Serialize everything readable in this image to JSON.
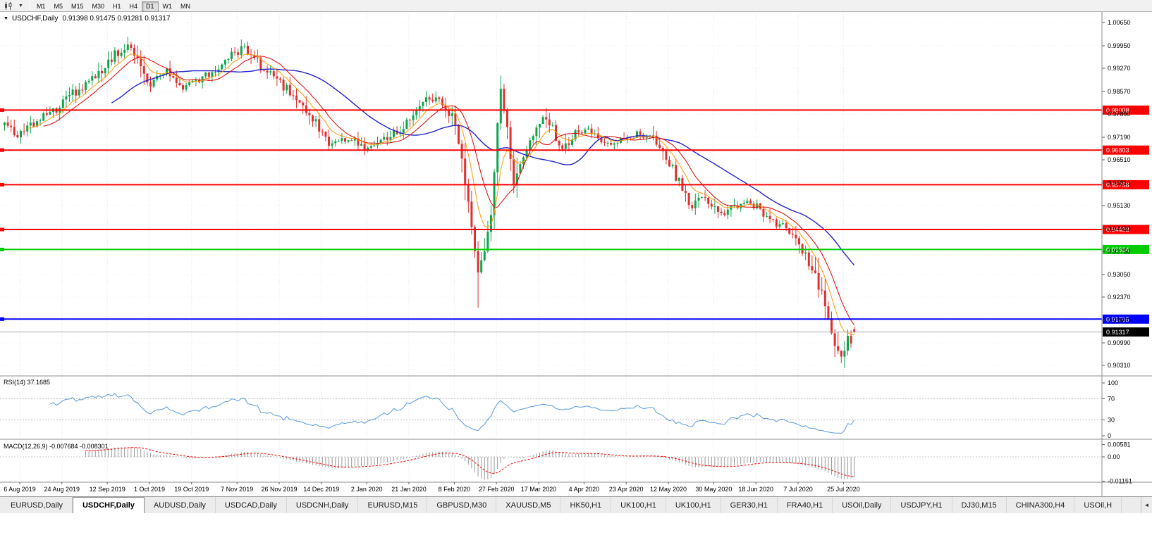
{
  "toolbar": {
    "caret": "▼",
    "timeframes": [
      {
        "label": "M1",
        "active": false
      },
      {
        "label": "M5",
        "active": false
      },
      {
        "label": "M15",
        "active": false
      },
      {
        "label": "M30",
        "active": false
      },
      {
        "label": "H1",
        "active": false
      },
      {
        "label": "H4",
        "active": false
      },
      {
        "label": "D1",
        "active": true
      },
      {
        "label": "W1",
        "active": false
      },
      {
        "label": "MN",
        "active": false
      }
    ]
  },
  "chart": {
    "caret": "▼",
    "symbol": "USDCHF,Daily",
    "ohlc_line": "0.91398 0.91475 0.91281 0.91317",
    "colors": {
      "up": "#0FA54C",
      "down": "#DF3030",
      "ma_fast": "#FF9900",
      "ma_mid": "#E00000",
      "ma_slow": "#2323CC",
      "grid": "#E4E4E4",
      "hgrid": "#F0F0F0",
      "splitter": "#8e8e8e",
      "axis_text": "#000000"
    },
    "price_axis_labels": [
      "1.00650",
      "0.99950",
      "0.99270",
      "0.98570",
      "0.97890",
      "0.97190",
      "0.96510",
      "0.95810",
      "0.95130",
      "0.94430",
      "0.93750",
      "0.93050",
      "0.92370",
      "0.91670",
      "0.90990",
      "0.90310"
    ],
    "hlines": [
      {
        "price": 0.98008,
        "label": "0.98008",
        "color": "#FF0000"
      },
      {
        "price": 0.96803,
        "label": "0.96803",
        "color": "#FF0000"
      },
      {
        "price": 0.95758,
        "label": "0.95758",
        "color": "#FF0000"
      },
      {
        "price": 0.94408,
        "label": "0.94408",
        "color": "#FF0000"
      },
      {
        "price": 0.93804,
        "label": "0.93804",
        "color": "#00CC00"
      },
      {
        "price": 0.91705,
        "label": "0.91705",
        "color": "#0000FF"
      }
    ],
    "current_price": {
      "value": 0.91317,
      "label": "0.91317",
      "tag_bg": "#000000",
      "line_color": "#aaaaaa"
    }
  },
  "rsi_panel": {
    "label": "RSI(14) 37.1685",
    "value": 37.1685,
    "axis_labels": [
      "100",
      "70",
      "30",
      "0"
    ],
    "axis_values": [
      100,
      70,
      30,
      0
    ],
    "levels": [
      70,
      30
    ],
    "line_color": "#5599DD"
  },
  "macd_panel": {
    "label": "MACD(12,26,9) -0.007684 -0.008301",
    "macd_value": -0.007684,
    "signal_value": -0.008301,
    "axis_labels": [
      "0.00581",
      "0.00",
      "-0.01151"
    ],
    "axis_values": [
      0.00581,
      0,
      -0.01151
    ],
    "hist_color": "#999999",
    "signal_color": "#FF0000"
  },
  "date_axis": {
    "labels": [
      "6 Aug 2019",
      "24 Aug 2019",
      "12 Sep 2019",
      "1 Oct 2019",
      "19 Oct 2019",
      "7 Nov 2019",
      "26 Nov 2019",
      "14 Dec 2019",
      "2 Jan 2020",
      "21 Jan 2020",
      "8 Feb 2020",
      "27 Feb 2020",
      "17 Mar 2020",
      "4 Apr 2020",
      "23 Apr 2020",
      "12 May 2020",
      "30 May 2020",
      "18 Jun 2020",
      "7 Jul 2020",
      "25 Jul 2020"
    ]
  },
  "tabs": {
    "scroll_left_arrow": "◄",
    "items": [
      {
        "label": "EURUSD,Daily",
        "active": false
      },
      {
        "label": "USDCHF,Daily",
        "active": true
      },
      {
        "label": "AUDUSD,Daily",
        "active": false
      },
      {
        "label": "USDCAD,Daily",
        "active": false
      },
      {
        "label": "USDCNH,Daily",
        "active": false
      },
      {
        "label": "EURUSD,M15",
        "active": false
      },
      {
        "label": "GBPUSD,M30",
        "active": false
      },
      {
        "label": "XAUUSD,M5",
        "active": false
      },
      {
        "label": "HK50,H1",
        "active": false
      },
      {
        "label": "UK100,H1",
        "active": false
      },
      {
        "label": "UK100,H1",
        "active": false
      },
      {
        "label": "GER30,H1",
        "active": false
      },
      {
        "label": "FRA40,H1",
        "active": false
      },
      {
        "label": "USOil,Daily",
        "active": false
      },
      {
        "label": "USDJPY,H1",
        "active": false
      },
      {
        "label": "DJ30,M15",
        "active": false
      },
      {
        "label": "CHINA300,H4",
        "active": false
      },
      {
        "label": "USOil,H",
        "active": false
      }
    ]
  },
  "chart_data": {
    "type": "candlestick",
    "symbol": "USDCHF",
    "timeframe": "D1",
    "title": "USDCHF,Daily",
    "ohlc_current": {
      "open": 0.91398,
      "high": 0.91475,
      "low": 0.91281,
      "close": 0.91317
    },
    "y_range": [
      0.9031,
      1.0065
    ],
    "x_range": [
      "6 Aug 2019",
      "5 Aug 2020"
    ],
    "n_candles": 263,
    "close_anchors": [
      [
        0,
        0.9755
      ],
      [
        4,
        0.9718
      ],
      [
        10,
        0.9772
      ],
      [
        16,
        0.9802
      ],
      [
        22,
        0.9858
      ],
      [
        28,
        0.9902
      ],
      [
        34,
        0.9968
      ],
      [
        38,
        0.9995
      ],
      [
        41,
        0.9958
      ],
      [
        45,
        0.9878
      ],
      [
        50,
        0.9926
      ],
      [
        55,
        0.9872
      ],
      [
        60,
        0.9896
      ],
      [
        66,
        0.9922
      ],
      [
        71,
        0.9972
      ],
      [
        74,
        0.9992
      ],
      [
        79,
        0.9934
      ],
      [
        84,
        0.9892
      ],
      [
        88,
        0.9856
      ],
      [
        93,
        0.9806
      ],
      [
        97,
        0.9748
      ],
      [
        100,
        0.9692
      ],
      [
        104,
        0.9706
      ],
      [
        108,
        0.9716
      ],
      [
        112,
        0.9682
      ],
      [
        117,
        0.9712
      ],
      [
        121,
        0.9738
      ],
      [
        126,
        0.9778
      ],
      [
        131,
        0.9842
      ],
      [
        136,
        0.9812
      ],
      [
        139,
        0.9762
      ],
      [
        141,
        0.9652
      ],
      [
        143,
        0.9525
      ],
      [
        145,
        0.9365
      ],
      [
        146,
        0.9302
      ],
      [
        148,
        0.9372
      ],
      [
        150,
        0.9482
      ],
      [
        151,
        0.9602
      ],
      [
        152,
        0.9772
      ],
      [
        153,
        0.9862
      ],
      [
        155,
        0.9742
      ],
      [
        157,
        0.9562
      ],
      [
        159,
        0.9642
      ],
      [
        162,
        0.9712
      ],
      [
        166,
        0.9778
      ],
      [
        169,
        0.9742
      ],
      [
        172,
        0.9682
      ],
      [
        175,
        0.9722
      ],
      [
        179,
        0.9746
      ],
      [
        183,
        0.9716
      ],
      [
        187,
        0.9702
      ],
      [
        191,
        0.9716
      ],
      [
        195,
        0.9732
      ],
      [
        199,
        0.9722
      ],
      [
        203,
        0.9672
      ],
      [
        206,
        0.9622
      ],
      [
        209,
        0.9562
      ],
      [
        212,
        0.9512
      ],
      [
        215,
        0.9532
      ],
      [
        218,
        0.9506
      ],
      [
        221,
        0.9482
      ],
      [
        224,
        0.9502
      ],
      [
        228,
        0.9526
      ],
      [
        232,
        0.9512
      ],
      [
        236,
        0.9466
      ],
      [
        240,
        0.9452
      ],
      [
        244,
        0.9422
      ],
      [
        247,
        0.9362
      ],
      [
        250,
        0.9302
      ],
      [
        252,
        0.9242
      ],
      [
        254,
        0.9182
      ],
      [
        256,
        0.9102
      ],
      [
        258,
        0.9052
      ],
      [
        259,
        0.9086
      ],
      [
        260,
        0.9122
      ],
      [
        261,
        0.9096
      ],
      [
        262,
        0.91317
      ]
    ],
    "special": {
      "top_high_index": 38,
      "top_high": 1.0022,
      "crash_low_index": 146,
      "crash_low": 0.9205,
      "spike_high_index": 153,
      "spike_high": 0.9905,
      "final_low_index": 258,
      "final_low": 0.9038
    },
    "last_candle": {
      "o": 0.91398,
      "h": 0.91475,
      "l": 0.91281,
      "c": 0.91317
    },
    "indicators": {
      "ma_fast": {
        "type": "EMA",
        "period": 8,
        "color": "#FF9900"
      },
      "ma_mid": {
        "type": "SMA",
        "period": 13,
        "color": "#E00000"
      },
      "ma_slow": {
        "type": "SMA",
        "period": 34,
        "color": "#2323CC"
      },
      "rsi": {
        "period": 14,
        "current": 37.1685,
        "levels": [
          70,
          30
        ]
      },
      "macd": {
        "fast": 12,
        "slow": 26,
        "signal": 9,
        "current": -0.007684,
        "signal_current": -0.008301
      }
    },
    "hlines": [
      0.98008,
      0.96803,
      0.95758,
      0.94408,
      0.93804,
      0.91705
    ]
  }
}
